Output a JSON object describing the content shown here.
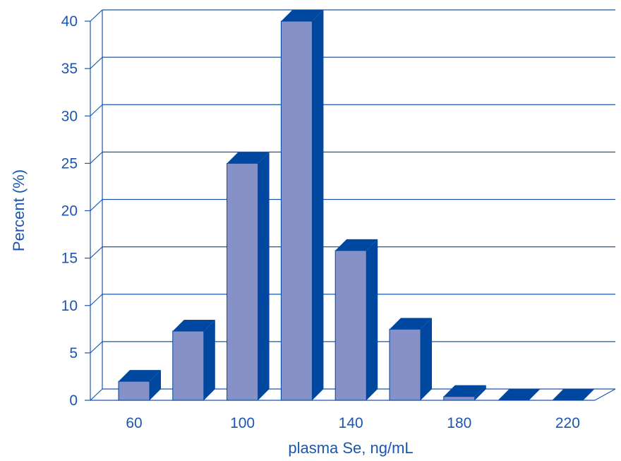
{
  "chart_data": {
    "type": "bar",
    "style": "3d",
    "xlabel": "plasma Se, ng/mL",
    "ylabel": "Percent (%)",
    "ylim": [
      0,
      40
    ],
    "yticks": [
      0,
      5,
      10,
      15,
      20,
      25,
      30,
      35,
      40
    ],
    "categories": [
      "60",
      "80",
      "100",
      "120",
      "140",
      "160",
      "180",
      "200",
      "220"
    ],
    "xtick_labels": [
      "60",
      "100",
      "140",
      "180",
      "220"
    ],
    "values": [
      2,
      7.3,
      25,
      40,
      15.8,
      7.5,
      0.4,
      0,
      0
    ],
    "grid": true,
    "colors": {
      "bar_front": "#8691c8",
      "bar_side": "#0047a0",
      "bar_top": "#0047a0",
      "axis": "#1a56b0",
      "grid": "#1a56b0",
      "text": "#1a56b0"
    }
  }
}
